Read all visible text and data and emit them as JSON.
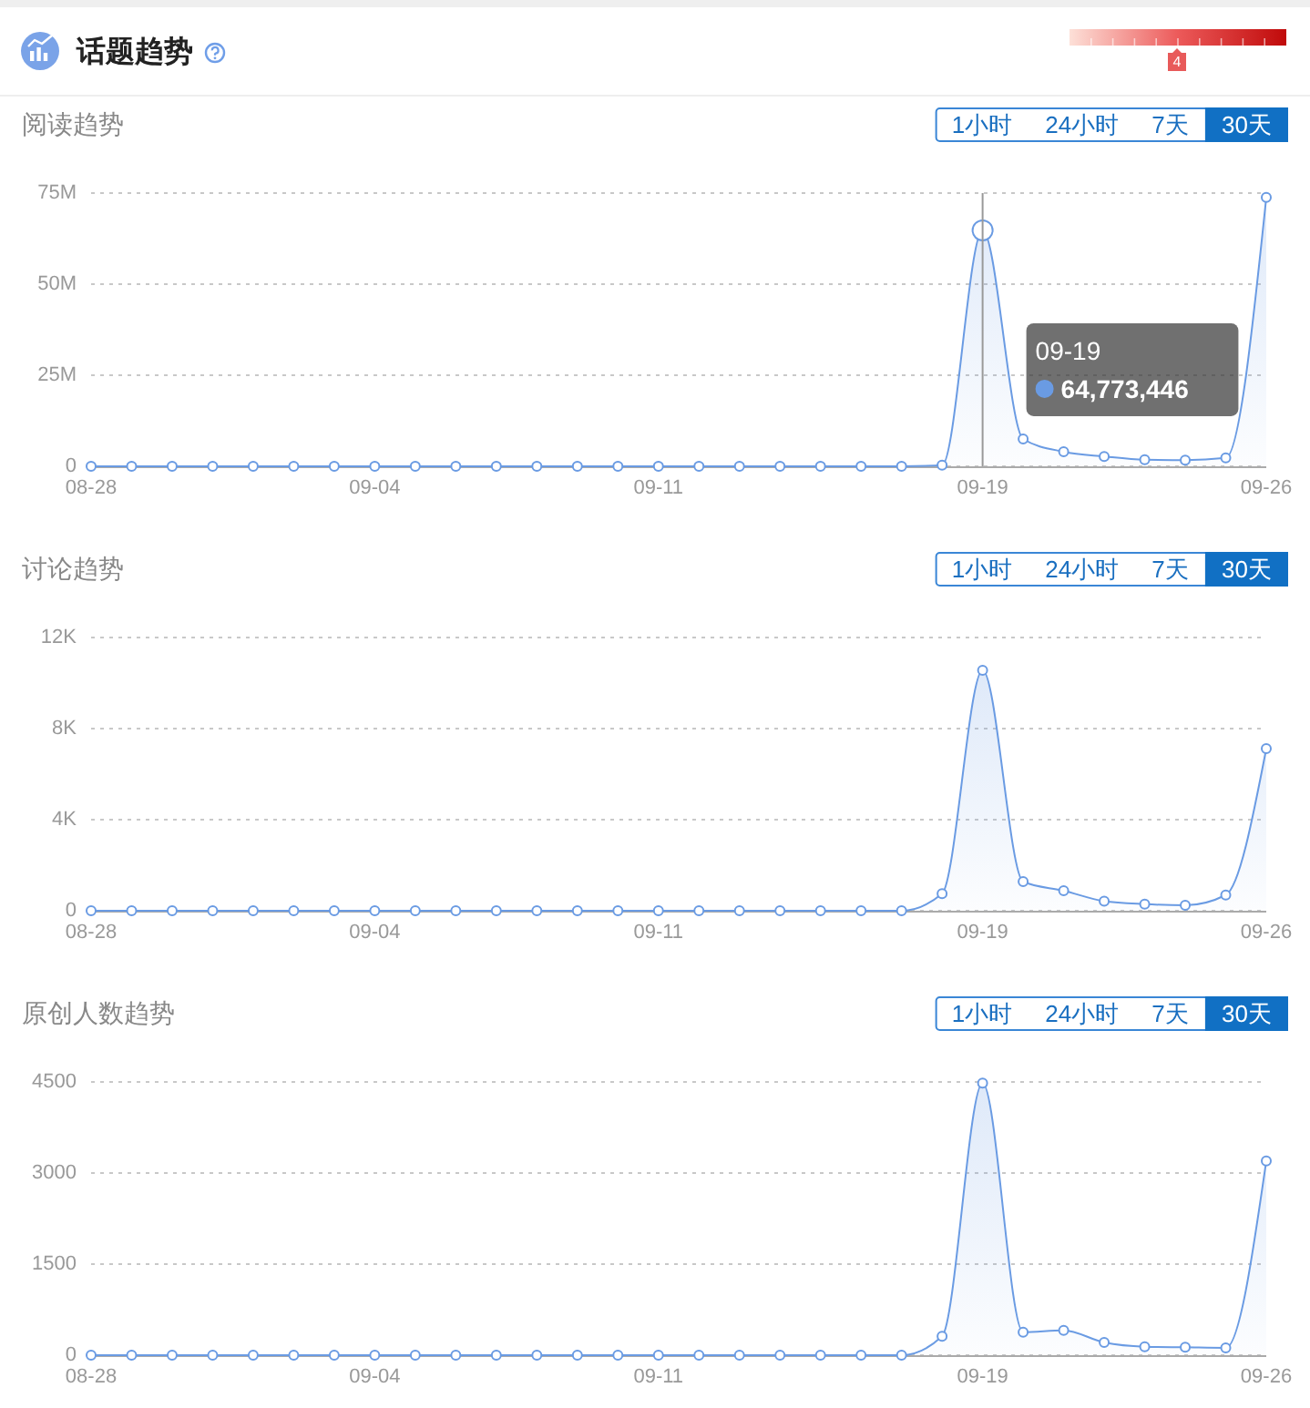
{
  "chart_data": [
    {
      "type": "other",
      "title": "话题趋势",
      "annotations": [
        "4"
      ]
    },
    {
      "type": "area",
      "title": "阅读趋势",
      "categories": [
        "08-28",
        null,
        null,
        null,
        null,
        null,
        null,
        "09-04",
        null,
        null,
        null,
        null,
        null,
        null,
        "09-11",
        null,
        null,
        null,
        null,
        null,
        null,
        null,
        "09-19",
        null,
        null,
        null,
        null,
        null,
        null,
        "09-26"
      ],
      "values": [
        0,
        0,
        0,
        0,
        0,
        0,
        0,
        0,
        0,
        0,
        0,
        0,
        0,
        0,
        0,
        0,
        0,
        0,
        0,
        0,
        0,
        300000,
        64773446,
        7500000,
        4000000,
        2700000,
        1800000,
        1700000,
        2300000,
        73800000
      ],
      "color": "#6a9be3",
      "ylim": [
        0,
        75000000
      ],
      "yticks": [
        0,
        {
          "value": 25000000,
          "label": "25M"
        },
        {
          "value": 50000000,
          "label": "50M"
        },
        {
          "value": 75000000,
          "label": "75M"
        }
      ],
      "grid": "y",
      "marker": "circle",
      "annotations": [
        "1小时",
        "24小时",
        "7天",
        "30天",
        "09-19",
        "64,773,446"
      ]
    },
    {
      "type": "area",
      "title": "讨论趋势",
      "categories": [
        "08-28",
        null,
        null,
        null,
        null,
        null,
        null,
        "09-04",
        null,
        null,
        null,
        null,
        null,
        null,
        "09-11",
        null,
        null,
        null,
        null,
        null,
        null,
        null,
        "09-19",
        null,
        null,
        null,
        null,
        null,
        null,
        "09-26"
      ],
      "values": [
        0,
        0,
        0,
        0,
        0,
        0,
        0,
        0,
        0,
        0,
        0,
        0,
        0,
        0,
        0,
        0,
        0,
        0,
        0,
        0,
        0,
        750,
        10560,
        1280,
        880,
        420,
        290,
        240,
        690,
        7120
      ],
      "color": "#6a9be3",
      "ylim": [
        0,
        12000
      ],
      "yticks": [
        0,
        {
          "value": 4000,
          "label": "4K"
        },
        {
          "value": 8000,
          "label": "8K"
        },
        {
          "value": 12000,
          "label": "12K"
        }
      ],
      "grid": "y",
      "marker": "circle",
      "annotations": [
        "1小时",
        "24小时",
        "7天",
        "30天"
      ]
    },
    {
      "type": "area",
      "title": "原创人数趋势",
      "categories": [
        "08-28",
        null,
        null,
        null,
        null,
        null,
        null,
        "09-04",
        null,
        null,
        null,
        null,
        null,
        null,
        "09-11",
        null,
        null,
        null,
        null,
        null,
        null,
        null,
        "09-19",
        null,
        null,
        null,
        null,
        null,
        null,
        "09-26"
      ],
      "values": [
        0,
        0,
        0,
        0,
        0,
        0,
        0,
        0,
        0,
        0,
        0,
        0,
        0,
        0,
        0,
        0,
        0,
        0,
        0,
        0,
        0,
        310,
        4480,
        380,
        410,
        210,
        140,
        130,
        120,
        3200
      ],
      "color": "#6a9be3",
      "ylim": [
        0,
        4500
      ],
      "yticks": [
        0,
        1500,
        3000,
        4500
      ],
      "grid": "y",
      "marker": "circle",
      "annotations": [
        "1小时",
        "24小时",
        "7天",
        "30天"
      ]
    }
  ]
}
